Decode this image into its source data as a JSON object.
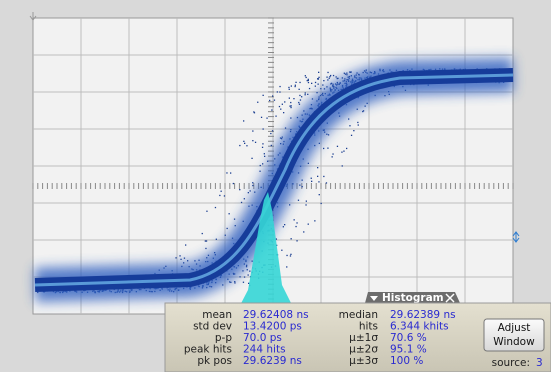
{
  "panel": {
    "title": "Histogram",
    "rows": [
      [
        "mean",
        "29.62408 ns",
        "median",
        "29.62389 ns"
      ],
      [
        "std dev",
        "13.4200 ps",
        "hits",
        "6.344 khits"
      ],
      [
        "p-p",
        "70.0 ps",
        "μ±1σ",
        "70.6 %"
      ],
      [
        "peak hits",
        "244 hits",
        "μ±2σ",
        "95.1 %"
      ],
      [
        "pk pos",
        "29.6239 ns",
        "μ±3σ",
        "100 %"
      ]
    ],
    "button": [
      "Adjust",
      "Window"
    ],
    "source_label": "source:",
    "source_value": "3"
  }
}
